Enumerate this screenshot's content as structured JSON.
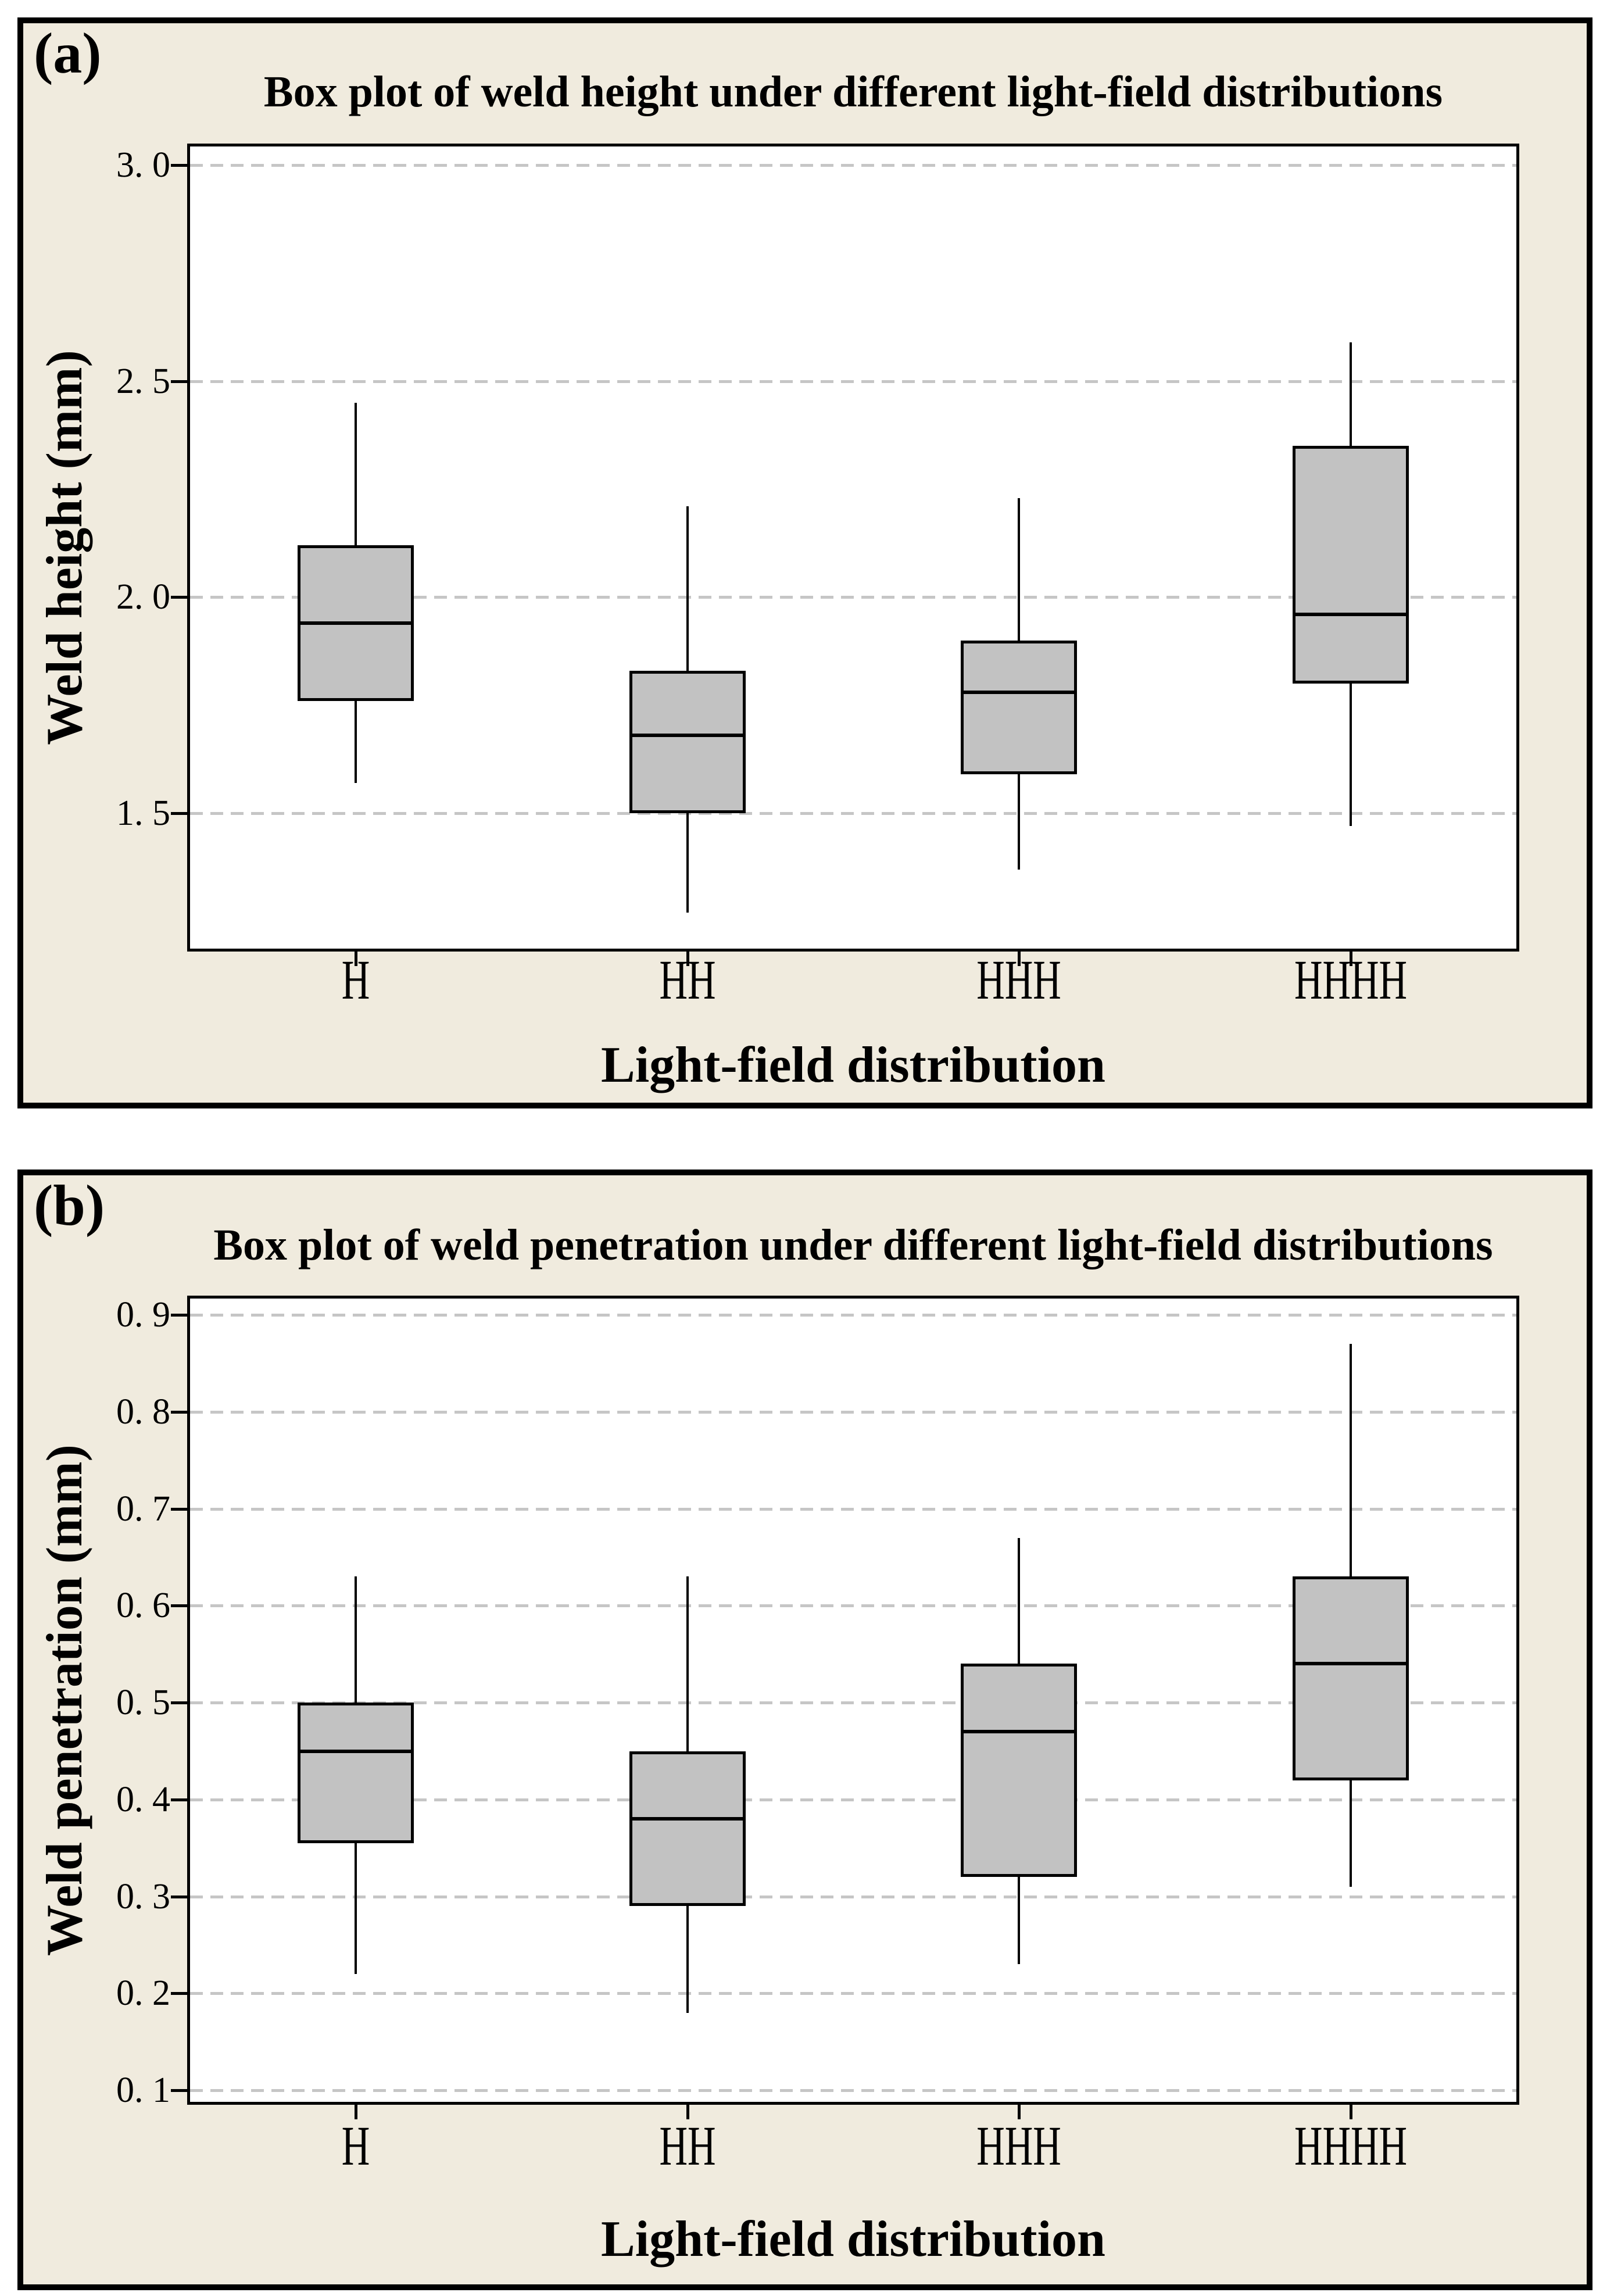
{
  "colors": {
    "panel_background": "#f0ebde",
    "plot_background": "#ffffff",
    "box_fill": "#c2c2c2",
    "grid_line": "#c6c6c6",
    "axis_line": "#000000"
  },
  "chart_data": [
    {
      "type": "box",
      "panel_label": "(a)",
      "title": "Box plot of weld height under different light-field distributions",
      "xlabel": "Light-field distribution",
      "ylabel": "Weld height (mm)",
      "categories": [
        "H",
        "HH",
        "HHH",
        "HHHH"
      ],
      "boxes": [
        {
          "category": "H",
          "whisker_low": 1.57,
          "q1": 1.76,
          "median": 1.94,
          "q3": 2.12,
          "whisker_high": 2.45
        },
        {
          "category": "HH",
          "whisker_low": 1.27,
          "q1": 1.5,
          "median": 1.68,
          "q3": 1.83,
          "whisker_high": 2.21
        },
        {
          "category": "HHH",
          "whisker_low": 1.37,
          "q1": 1.59,
          "median": 1.78,
          "q3": 1.9,
          "whisker_high": 2.23
        },
        {
          "category": "HHHH",
          "whisker_low": 1.47,
          "q1": 1.8,
          "median": 1.96,
          "q3": 2.35,
          "whisker_high": 2.59
        }
      ],
      "ylim": [
        1.18,
        3.05
      ],
      "yticks": [
        {
          "value": 3.0,
          "label": "3. 0"
        },
        {
          "value": 2.5,
          "label": "2. 5"
        },
        {
          "value": 2.0,
          "label": "2. 0"
        },
        {
          "value": 1.5,
          "label": "1. 5"
        }
      ],
      "grid": "horizontal-dashed",
      "legend": "none"
    },
    {
      "type": "box",
      "panel_label": "(b)",
      "title": "Box plot of weld penetration under different light-field distributions",
      "xlabel": "Light-field distribution",
      "ylabel": "Weld penetration (mm)",
      "categories": [
        "H",
        "HH",
        "HHH",
        "HHHH"
      ],
      "boxes": [
        {
          "category": "H",
          "whisker_low": 0.22,
          "q1": 0.355,
          "median": 0.45,
          "q3": 0.5,
          "whisker_high": 0.63
        },
        {
          "category": "HH",
          "whisker_low": 0.18,
          "q1": 0.29,
          "median": 0.38,
          "q3": 0.45,
          "whisker_high": 0.63
        },
        {
          "category": "HHH",
          "whisker_low": 0.23,
          "q1": 0.32,
          "median": 0.47,
          "q3": 0.54,
          "whisker_high": 0.67
        },
        {
          "category": "HHHH",
          "whisker_low": 0.31,
          "q1": 0.42,
          "median": 0.54,
          "q3": 0.63,
          "whisker_high": 0.87
        }
      ],
      "ylim": [
        0.085,
        0.92
      ],
      "yticks": [
        {
          "value": 0.9,
          "label": "0. 9"
        },
        {
          "value": 0.8,
          "label": "0. 8"
        },
        {
          "value": 0.7,
          "label": "0. 7"
        },
        {
          "value": 0.6,
          "label": "0. 6"
        },
        {
          "value": 0.5,
          "label": "0. 5"
        },
        {
          "value": 0.4,
          "label": "0. 4"
        },
        {
          "value": 0.3,
          "label": "0. 3"
        },
        {
          "value": 0.2,
          "label": "0. 2"
        },
        {
          "value": 0.1,
          "label": "0. 1"
        }
      ],
      "grid": "horizontal-dashed",
      "legend": "none"
    }
  ]
}
